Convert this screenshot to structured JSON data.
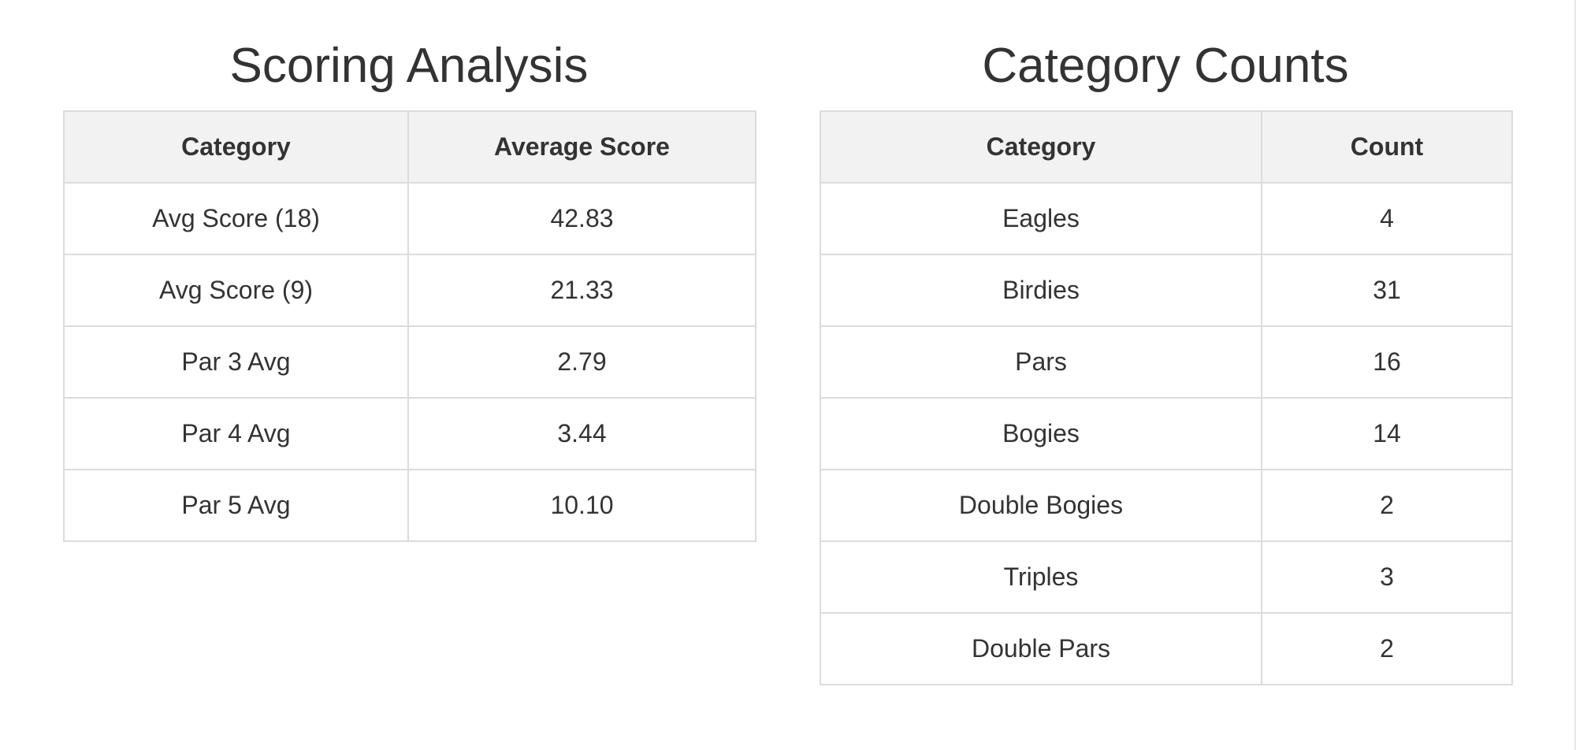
{
  "scoring": {
    "title": "Scoring Analysis",
    "headers": [
      "Category",
      "Average Score"
    ],
    "rows": [
      [
        "Avg Score (18)",
        "42.83"
      ],
      [
        "Avg Score (9)",
        "21.33"
      ],
      [
        "Par 3 Avg",
        "2.79"
      ],
      [
        "Par 4 Avg",
        "3.44"
      ],
      [
        "Par 5 Avg",
        "10.10"
      ]
    ]
  },
  "counts": {
    "title": "Category Counts",
    "headers": [
      "Category",
      "Count"
    ],
    "rows": [
      [
        "Eagles",
        "4"
      ],
      [
        "Birdies",
        "31"
      ],
      [
        "Pars",
        "16"
      ],
      [
        "Bogies",
        "14"
      ],
      [
        "Double Bogies",
        "2"
      ],
      [
        "Triples",
        "3"
      ],
      [
        "Double Pars",
        "2"
      ]
    ]
  },
  "colors": {
    "text": "#333333",
    "header_bg": "#f2f2f2",
    "border": "#dcdcdc",
    "background": "#ffffff"
  }
}
